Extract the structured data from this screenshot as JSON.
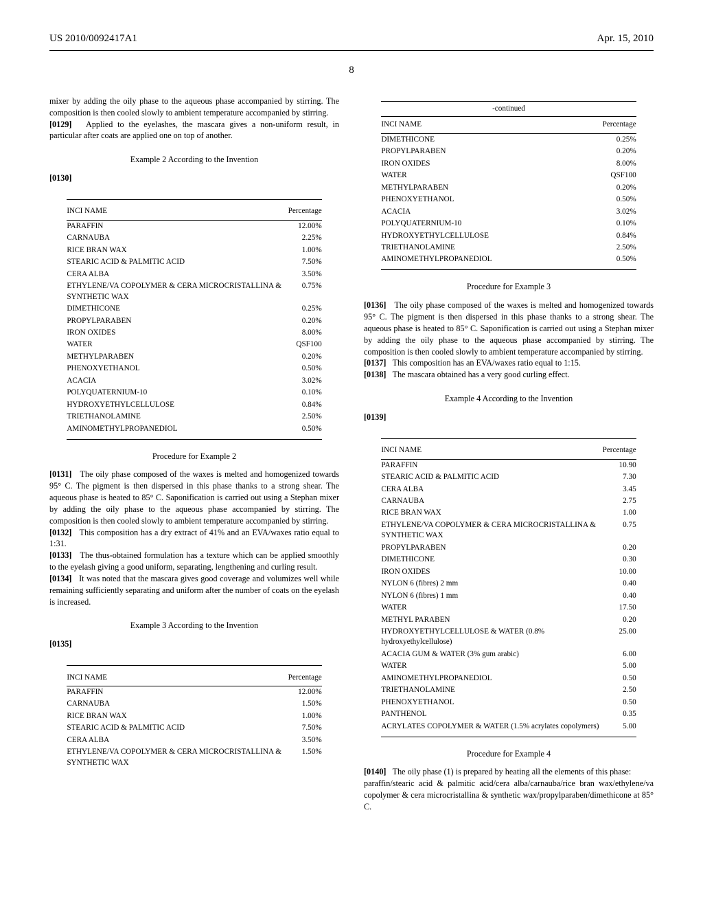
{
  "header": {
    "pub": "US 2010/0092417A1",
    "date": "Apr. 15, 2010"
  },
  "pageNumber": "8",
  "colors": {
    "text": "#000000",
    "bg": "#ffffff",
    "rule": "#000000"
  },
  "fonts": {
    "body_pt": 12.2,
    "table_pt": 11.2,
    "header_pt": 15
  },
  "left": {
    "introText": "mixer by adding the oily phase to the aqueous phase accompanied by stirring. The composition is then cooled slowly to ambient temperature accompanied by stirring.",
    "p0129_num": "[0129]",
    "p0129": "Applied to the eyelashes, the mascara gives a non-uniform result, in particular after coats are applied one on top of another.",
    "example2Heading": "Example 2 According to the Invention",
    "p0130_num": "[0130]",
    "table2": {
      "col_name": "INCI NAME",
      "col_pct": "Percentage",
      "rows": [
        [
          "PARAFFIN",
          "12.00%"
        ],
        [
          "CARNAUBA",
          "2.25%"
        ],
        [
          "RICE BRAN WAX",
          "1.00%"
        ],
        [
          "STEARIC ACID & PALMITIC ACID",
          "7.50%"
        ],
        [
          "CERA ALBA",
          "3.50%"
        ],
        [
          "ETHYLENE/VA COPOLYMER & CERA MICROCRISTALLINA & SYNTHETIC WAX",
          "0.75%"
        ],
        [
          "DIMETHICONE",
          "0.25%"
        ],
        [
          "PROPYLPARABEN",
          "0.20%"
        ],
        [
          "IRON OXIDES",
          "8.00%"
        ],
        [
          "WATER",
          "QSF100"
        ],
        [
          "METHYLPARABEN",
          "0.20%"
        ],
        [
          "PHENOXYETHANOL",
          "0.50%"
        ],
        [
          "ACACIA",
          "3.02%"
        ],
        [
          "POLYQUATERNIUM-10",
          "0.10%"
        ],
        [
          "HYDROXYETHYLCELLULOSE",
          "0.84%"
        ],
        [
          "TRIETHANOLAMINE",
          "2.50%"
        ],
        [
          "AMINOMETHYLPROPANEDIOL",
          "0.50%"
        ]
      ]
    },
    "procedure2Heading": "Procedure for Example 2",
    "p0131_num": "[0131]",
    "p0131": "The oily phase composed of the waxes is melted and homogenized towards 95° C. The pigment is then dispersed in this phase thanks to a strong shear. The aqueous phase is heated to 85° C. Saponification is carried out using a Stephan mixer by adding the oily phase to the aqueous phase accompanied by stirring. The composition is then cooled slowly to ambient temperature accompanied by stirring.",
    "p0132_num": "[0132]",
    "p0132": "This composition has a dry extract of 41% and an EVA/waxes ratio equal to 1:31.",
    "p0133_num": "[0133]",
    "p0133": "The thus-obtained formulation has a texture which can be applied smoothly to the eyelash giving a good uniform, separating, lengthening and curling result.",
    "p0134_num": "[0134]",
    "p0134": "It was noted that the mascara gives good coverage and volumizes well while remaining sufficiently separating and uniform after the number of coats on the eyelash is increased.",
    "example3Heading": "Example 3 According to the Invention",
    "p0135_num": "[0135]",
    "table3a": {
      "col_name": "INCI NAME",
      "col_pct": "Percentage",
      "rows": [
        [
          "PARAFFIN",
          "12.00%"
        ],
        [
          "CARNAUBA",
          "1.50%"
        ],
        [
          "RICE BRAN WAX",
          "1.00%"
        ],
        [
          "STEARIC ACID & PALMITIC ACID",
          "7.50%"
        ],
        [
          "CERA ALBA",
          "3.50%"
        ],
        [
          "ETHYLENE/VA COPOLYMER & CERA MICROCRISTALLINA & SYNTHETIC WAX",
          "1.50%"
        ]
      ]
    }
  },
  "right": {
    "continued": "-continued",
    "table3b": {
      "col_name": "INCI NAME",
      "col_pct": "Percentage",
      "rows": [
        [
          "DIMETHICONE",
          "0.25%"
        ],
        [
          "PROPYLPARABEN",
          "0.20%"
        ],
        [
          "IRON OXIDES",
          "8.00%"
        ],
        [
          "WATER",
          "QSF100"
        ],
        [
          "METHYLPARABEN",
          "0.20%"
        ],
        [
          "PHENOXYETHANOL",
          "0.50%"
        ],
        [
          "ACACIA",
          "3.02%"
        ],
        [
          "POLYQUATERNIUM-10",
          "0.10%"
        ],
        [
          "HYDROXYETHYLCELLULOSE",
          "0.84%"
        ],
        [
          "TRIETHANOLAMINE",
          "2.50%"
        ],
        [
          "AMINOMETHYLPROPANEDIOL",
          "0.50%"
        ]
      ]
    },
    "procedure3Heading": "Procedure for Example 3",
    "p0136_num": "[0136]",
    "p0136": "The oily phase composed of the waxes is melted and homogenized towards 95° C. The pigment is then dispersed in this phase thanks to a strong shear. The aqueous phase is heated to 85° C. Saponification is carried out using a Stephan mixer by adding the oily phase to the aqueous phase accompanied by stirring. The composition is then cooled slowly to ambient temperature accompanied by stirring.",
    "p0137_num": "[0137]",
    "p0137": "This composition has an EVA/waxes ratio equal to 1:15.",
    "p0138_num": "[0138]",
    "p0138": "The mascara obtained has a very good curling effect.",
    "example4Heading": "Example 4 According to the Invention",
    "p0139_num": "[0139]",
    "table4": {
      "col_name": "INCI NAME",
      "col_pct": "Percentage",
      "rows": [
        [
          "PARAFFIN",
          "10.90"
        ],
        [
          "STEARIC ACID & PALMITIC ACID",
          "7.30"
        ],
        [
          "CERA ALBA",
          "3.45"
        ],
        [
          "CARNAUBA",
          "2.75"
        ],
        [
          "RICE BRAN WAX",
          "1.00"
        ],
        [
          "ETHYLENE/VA COPOLYMER & CERA MICROCRISTALLINA & SYNTHETIC WAX",
          "0.75"
        ],
        [
          "PROPYLPARABEN",
          "0.20"
        ],
        [
          "DIMETHICONE",
          "0.30"
        ],
        [
          "IRON OXIDES",
          "10.00"
        ],
        [
          "NYLON 6 (fibres) 2 mm",
          "0.40"
        ],
        [
          "NYLON 6 (fibres) 1 mm",
          "0.40"
        ],
        [
          "WATER",
          "17.50"
        ],
        [
          "METHYL PARABEN",
          "0.20"
        ],
        [
          "HYDROXYETHYLCELLULOSE & WATER (0.8% hydroxyethylcellulose)",
          "25.00"
        ],
        [
          "ACACIA GUM & WATER (3% gum arabic)",
          "6.00"
        ],
        [
          "WATER",
          "5.00"
        ],
        [
          "AMINOMETHYLPROPANEDIOL",
          "0.50"
        ],
        [
          "TRIETHANOLAMINE",
          "2.50"
        ],
        [
          "PHENOXYETHANOL",
          "0.50"
        ],
        [
          "PANTHENOL",
          "0.35"
        ],
        [
          "ACRYLATES COPOLYMER & WATER (1.5% acrylates copolymers)",
          "5.00"
        ]
      ]
    },
    "procedure4Heading": "Procedure for Example 4",
    "p0140_num": "[0140]",
    "p0140": "The oily phase (1) is prepared by heating all the elements of this phase:",
    "p0140b": "paraffin/stearic acid & palmitic acid/cera alba/carnauba/rice bran wax/ethylene/va copolymer & cera microcristallina & synthetic wax/propylparaben/dimethicone at 85° C."
  }
}
